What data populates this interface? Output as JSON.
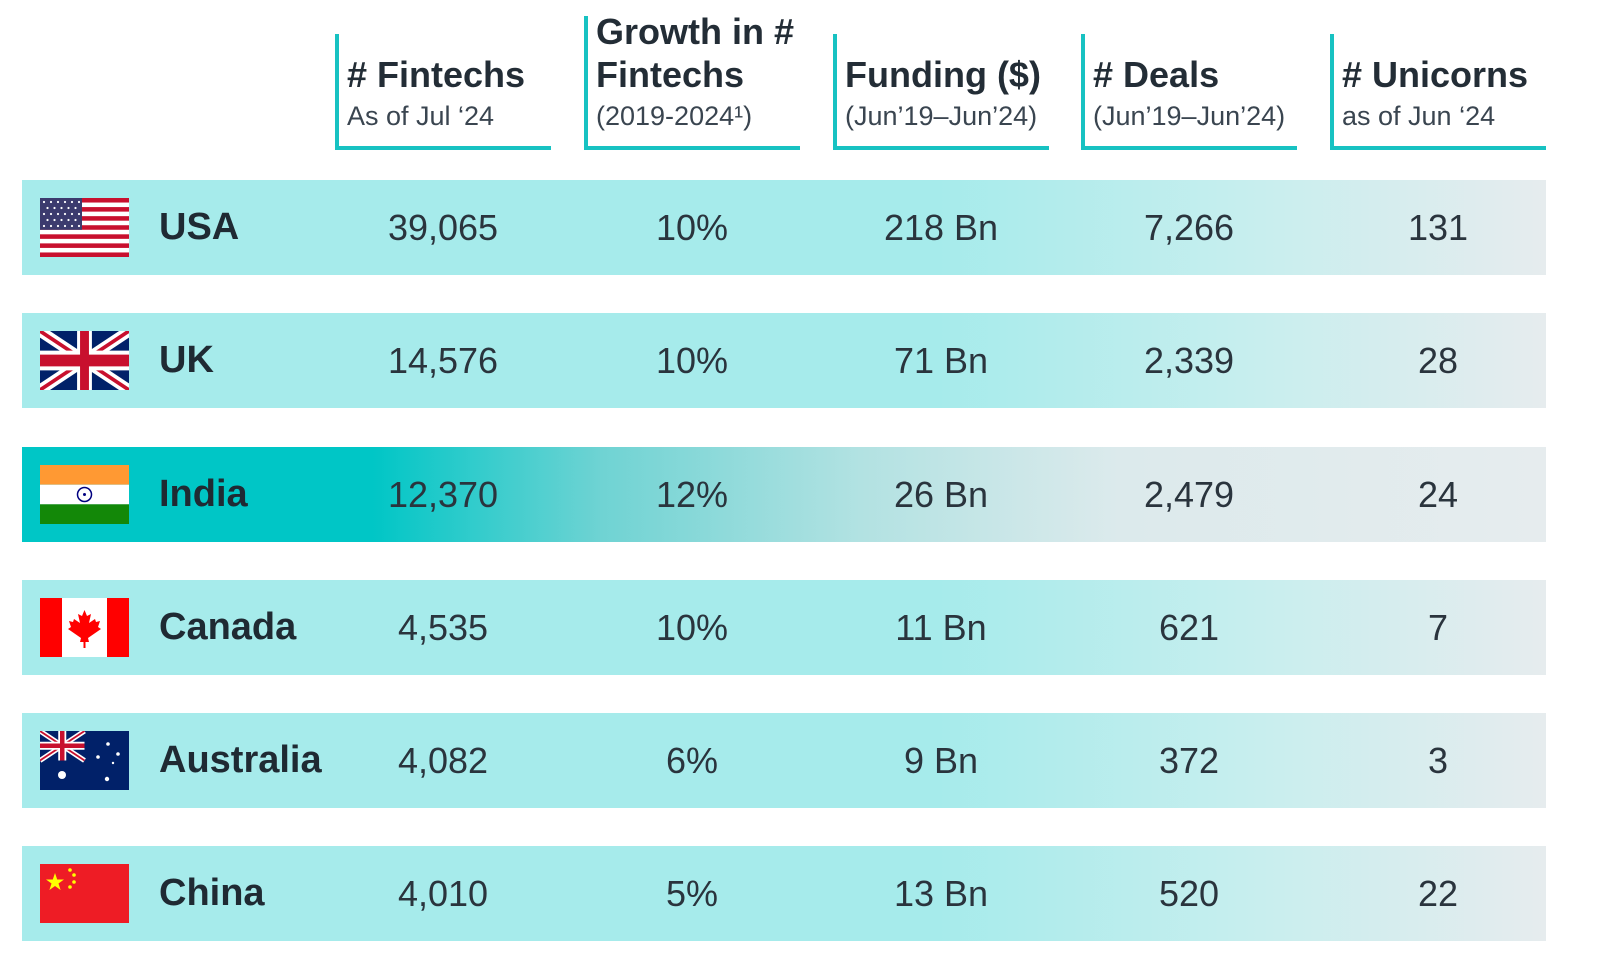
{
  "columns": [
    {
      "title": "# Fintechs",
      "subtitle": "As of Jul ‘24"
    },
    {
      "title": "Growth in # Fintechs",
      "subtitle": "(2019-2024¹)"
    },
    {
      "title": "Funding ($)",
      "subtitle": "(Jun’19–Jun’24)"
    },
    {
      "title": "# Deals",
      "subtitle": "(Jun’19–Jun’24)"
    },
    {
      "title": "# Unicorns",
      "subtitle": "as of Jun ‘24"
    }
  ],
  "rows": [
    {
      "country": "USA",
      "flag_icon": "usa-flag-icon",
      "fintechs": "39,065",
      "growth": "10%",
      "funding": "218 Bn",
      "deals": "7,266",
      "unicorns": "131",
      "highlight": false
    },
    {
      "country": "UK",
      "flag_icon": "uk-flag-icon",
      "fintechs": "14,576",
      "growth": "10%",
      "funding": "71 Bn",
      "deals": "2,339",
      "unicorns": "28",
      "highlight": false
    },
    {
      "country": "India",
      "flag_icon": "india-flag-icon",
      "fintechs": "12,370",
      "growth": "12%",
      "funding": "26 Bn",
      "deals": "2,479",
      "unicorns": "24",
      "highlight": true
    },
    {
      "country": "Canada",
      "flag_icon": "canada-flag-icon",
      "fintechs": "4,535",
      "growth": "10%",
      "funding": "11 Bn",
      "deals": "621",
      "unicorns": "7",
      "highlight": false
    },
    {
      "country": "Australia",
      "flag_icon": "australia-flag-icon",
      "fintechs": "4,082",
      "growth": "6%",
      "funding": "9 Bn",
      "deals": "372",
      "unicorns": "3",
      "highlight": false
    },
    {
      "country": "China",
      "flag_icon": "china-flag-icon",
      "fintechs": "4,010",
      "growth": "5%",
      "funding": "13 Bn",
      "deals": "520",
      "unicorns": "22",
      "highlight": false
    }
  ],
  "colors": {
    "accent": "#17c2c2",
    "row_fill": "#a6ebeb",
    "highlight_fill": "#00c6c6"
  },
  "chart_data": {
    "type": "table",
    "columns": [
      "# Fintechs",
      "Growth in # Fintechs",
      "Funding ($)",
      "# Deals",
      "# Unicorns"
    ],
    "categories": [
      "USA",
      "UK",
      "India",
      "Canada",
      "Australia",
      "China"
    ],
    "series": [
      {
        "name": "# Fintechs",
        "values": [
          39065,
          14576,
          12370,
          4535,
          4082,
          4010
        ]
      },
      {
        "name": "Growth in # Fintechs (%)",
        "values": [
          10,
          10,
          12,
          10,
          6,
          5
        ]
      },
      {
        "name": "Funding ($ Bn)",
        "values": [
          218,
          71,
          26,
          11,
          9,
          13
        ]
      },
      {
        "name": "# Deals",
        "values": [
          7266,
          2339,
          2479,
          621,
          372,
          520
        ]
      },
      {
        "name": "# Unicorns",
        "values": [
          131,
          28,
          24,
          7,
          3,
          22
        ]
      }
    ],
    "highlighted_row": "India"
  }
}
